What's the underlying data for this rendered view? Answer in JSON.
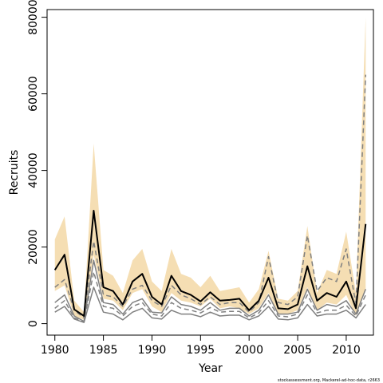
{
  "chart_data": {
    "type": "line",
    "title": "",
    "xlabel": "Year",
    "ylabel": "Recruits",
    "credit": "stockassessment.org, Mackerel-ad-hoc-data, r2663",
    "xlim": [
      1979.2,
      2012.8
    ],
    "ylim": [
      -3000,
      82000
    ],
    "xticks": [
      1980,
      1985,
      1990,
      1995,
      2000,
      2005,
      2010
    ],
    "yticks": [
      0,
      20000,
      40000,
      60000,
      80000
    ],
    "x": [
      1980,
      1981,
      1982,
      1983,
      1984,
      1985,
      1986,
      1987,
      1988,
      1989,
      1990,
      1991,
      1992,
      1993,
      1994,
      1995,
      1996,
      1997,
      1998,
      1999,
      2000,
      2001,
      2002,
      2003,
      2004,
      2005,
      2006,
      2007,
      2008,
      2009,
      2010,
      2011,
      2012
    ],
    "series": [
      {
        "role": "ci-band-upper",
        "values": [
          22000,
          28000,
          6000,
          3000,
          47000,
          14000,
          12500,
          8000,
          16500,
          19500,
          11000,
          8500,
          19500,
          13000,
          12000,
          9500,
          12500,
          8500,
          9000,
          9500,
          5500,
          9000,
          19000,
          6500,
          6000,
          8500,
          25500,
          8000,
          14000,
          13000,
          24000,
          8000,
          80000
        ]
      },
      {
        "role": "ci-band-lower",
        "values": [
          8500,
          10000,
          2000,
          1000,
          18000,
          6500,
          6000,
          3500,
          8000,
          9000,
          4500,
          3000,
          8000,
          6000,
          5500,
          4500,
          6500,
          4000,
          4500,
          4000,
          2500,
          4000,
          8000,
          2500,
          2500,
          3500,
          9500,
          3500,
          5500,
          5000,
          7500,
          2000,
          9000
        ]
      },
      {
        "role": "estimate",
        "values": [
          14000,
          18000,
          3700,
          2000,
          29500,
          9500,
          8500,
          5000,
          11000,
          13000,
          7000,
          5000,
          12500,
          8500,
          7500,
          5800,
          8200,
          6000,
          6200,
          6500,
          3500,
          6000,
          12000,
          4000,
          3800,
          5000,
          15000,
          6000,
          8000,
          7000,
          11000,
          4000,
          26000
        ]
      },
      {
        "role": "grey-upper",
        "values": [
          5500,
          7500,
          2000,
          600,
          16500,
          5500,
          5000,
          2500,
          5500,
          6500,
          3000,
          2800,
          7000,
          5000,
          4500,
          3500,
          5500,
          3500,
          4000,
          4000,
          2000,
          3500,
          7500,
          2500,
          2500,
          3000,
          9000,
          3500,
          5000,
          4500,
          6000,
          2500,
          9000
        ]
      },
      {
        "role": "grey-lower",
        "values": [
          3000,
          4500,
          1200,
          300,
          9500,
          3000,
          2500,
          1000,
          3000,
          4000,
          1500,
          1200,
          3500,
          2500,
          2500,
          1800,
          3000,
          2000,
          2200,
          2200,
          1000,
          2000,
          4500,
          1200,
          1000,
          1500,
          5000,
          2000,
          2500,
          2500,
          3500,
          1500,
          5000
        ]
      },
      {
        "role": "grey-dashed-upper",
        "values": [
          9500,
          11500,
          3500,
          1500,
          21500,
          7500,
          7000,
          4500,
          9000,
          10000,
          6000,
          4500,
          10000,
          7500,
          6500,
          5000,
          7000,
          5000,
          5500,
          5500,
          3000,
          5500,
          17500,
          5500,
          5000,
          7000,
          23000,
          8500,
          12000,
          11000,
          19500,
          5000,
          65000
        ]
      },
      {
        "role": "grey-dashed-lower",
        "values": [
          4000,
          6000,
          1500,
          500,
          13500,
          4500,
          4000,
          2000,
          4500,
          5500,
          2500,
          2000,
          5500,
          4000,
          3500,
          2800,
          4200,
          3000,
          3200,
          3200,
          1500,
          2800,
          6000,
          2000,
          1800,
          2500,
          7500,
          2800,
          3500,
          3500,
          4800,
          2000,
          7500
        ]
      }
    ],
    "colors": {
      "band": "#f5deb3",
      "estimate": "#000000",
      "grey": "#808080",
      "axis": "#000000"
    },
    "grid": false,
    "legend": "none"
  }
}
